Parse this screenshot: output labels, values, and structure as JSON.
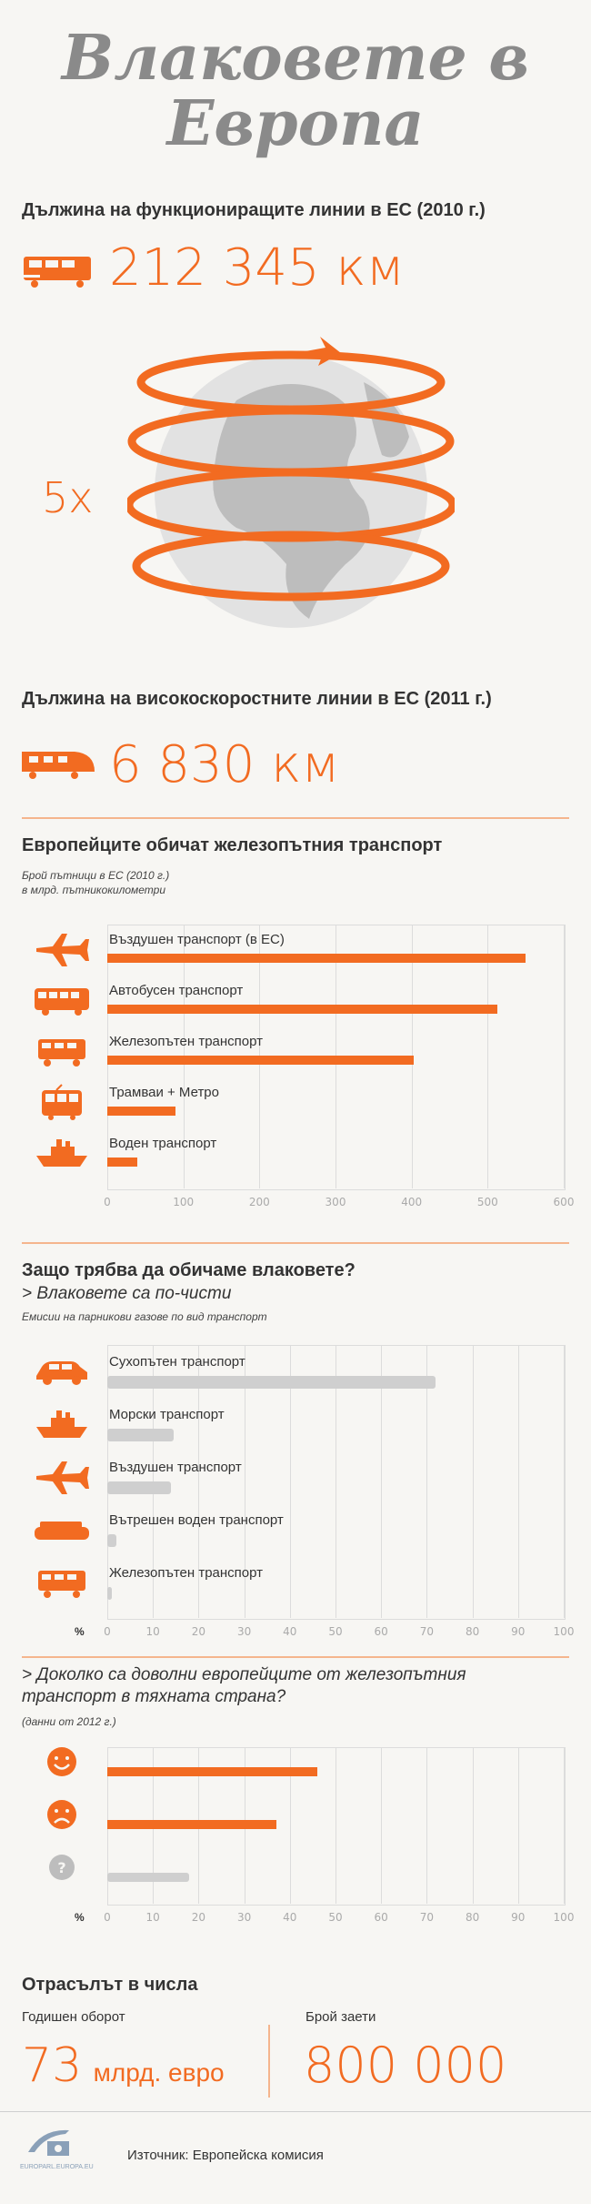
{
  "title": [
    "Влаковете в",
    "Европа"
  ],
  "sec1": {
    "heading": "Дължина на функциониращите линии в ЕС (2010 г.)",
    "value": "212 345 км",
    "multiplier": "5x"
  },
  "sec2": {
    "heading": "Дължина на високоскоростните линии в ЕС (2011 г.)",
    "value": "6 830 км"
  },
  "sec3": {
    "heading": "Европейците обичат железопътния транспорт",
    "sub1": "Брой пътници в ЕС (2010 г.)",
    "sub2": "в млрд. пътникокилометри"
  },
  "sec4": {
    "heading": "Защо трябва да обичаме влаковете?",
    "subheading": "> Влаковете са по-чисти",
    "note": "Емисии на парникови газове по вид транспорт",
    "pct": "%"
  },
  "sec5": {
    "heading_line1": "> Доколко са доволни европейците от железопътния",
    "heading_line2": "транспорт в тяхната страна?",
    "note": "(данни от 2012 г.)",
    "pct": "%",
    "unknown_icon_text": "?"
  },
  "sec6": {
    "heading": "Отрасълът в числа",
    "label1": "Годишен оборот",
    "value1_num": "73",
    "value1_unit": "млрд. евро",
    "label2": "Брой заети",
    "value2": "800 000"
  },
  "footer": {
    "source": "Източник: Европейска комисия",
    "logo_text": "EUROPARL.EUROPA.EU"
  },
  "colors": {
    "accent": "#f26b21",
    "grey": "#cfcfcf",
    "title": "#8a8a8a"
  },
  "chart_data": [
    {
      "type": "bar",
      "orientation": "horizontal",
      "categories": [
        "Въздушен транспорт (в ЕС)",
        "Автобусен транспорт",
        "Железопътен транспорт",
        "Трамваи + Метро",
        "Воден транспорт"
      ],
      "icons": [
        "airplane-icon",
        "bus-icon",
        "train-icon",
        "tram-icon",
        "ship-icon"
      ],
      "values": [
        550,
        513,
        403,
        90,
        40
      ],
      "xlim": [
        0,
        600
      ],
      "ticks": [
        "0",
        "100",
        "200",
        "300",
        "400",
        "500",
        "600"
      ],
      "grid": true
    },
    {
      "type": "bar",
      "orientation": "horizontal",
      "categories": [
        "Сухопътен транспорт",
        "Морски транспорт",
        "Въздушен транспорт",
        "Вътрешен воден транспорт",
        "Железопътен транспорт"
      ],
      "icons": [
        "car-icon",
        "ship-icon",
        "airplane-icon",
        "barge-icon",
        "train-icon"
      ],
      "values": [
        72,
        14.5,
        14,
        2,
        1
      ],
      "xlim": [
        0,
        100
      ],
      "ticks": [
        "0",
        "10",
        "20",
        "30",
        "40",
        "50",
        "60",
        "70",
        "80",
        "90",
        "100"
      ],
      "grid": true
    },
    {
      "type": "bar",
      "orientation": "horizontal",
      "categories": [
        "satisfied",
        "dissatisfied",
        "unknown"
      ],
      "icons": [
        "happy-face-icon",
        "sad-face-icon",
        "question-icon"
      ],
      "values": [
        46,
        37,
        18
      ],
      "xlim": [
        0,
        100
      ],
      "ticks": [
        "0",
        "10",
        "20",
        "30",
        "40",
        "50",
        "60",
        "70",
        "80",
        "90",
        "100"
      ],
      "grid": true
    }
  ]
}
